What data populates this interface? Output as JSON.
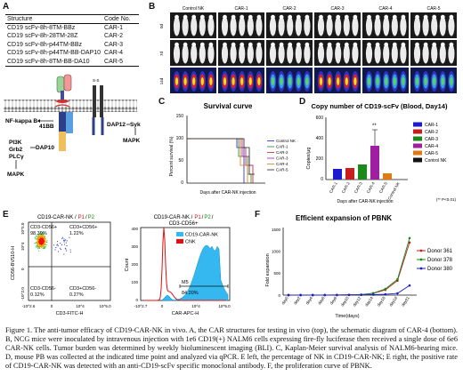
{
  "panels": {
    "a": "A",
    "b": "B",
    "c": "C",
    "d": "D",
    "e": "E",
    "f": "F"
  },
  "table": {
    "headers": [
      "Structure",
      "Code No."
    ],
    "rows": [
      [
        "CD19 scFv-8h-8TM-BBz",
        "CAR-1"
      ],
      [
        "CD19 scFv-8h-28TM-28Z",
        "CAR-2"
      ],
      [
        "CD19 scFv-8h-p44TM-BBz",
        "CAR-3"
      ],
      [
        "CD19 scFv-8h-p44TM-BB-DAP10",
        "CAR-4"
      ],
      [
        "CD19 scFv-8h-8TM-BB-DA10",
        "CAR-5"
      ]
    ]
  },
  "schematic": {
    "nfkb": "NF-kappa B",
    "bb": "41BB",
    "dap10": "DAP10",
    "dap12": "DAP12",
    "syk": "Syk",
    "pi3k": "PI3K",
    "grb2": "Grb2",
    "plcy": "PLCγ",
    "mapk_left": "MAPK",
    "mapk_right": "MAPK",
    "ss": "S-S"
  },
  "imaging": {
    "columns": [
      "Control NK",
      "CAR-1",
      "CAR-2",
      "CAR-3",
      "CAR-4",
      "CAR-5"
    ],
    "row_labels": [
      "0d",
      "7d",
      "14d"
    ]
  },
  "survival": {
    "title": "Survival curve",
    "ylabel": "Percent survival (%)",
    "xlabel": "Days after CAR-NK injection",
    "legend": [
      "Control NK",
      "CAR-1",
      "CAR-2",
      "CAR-3",
      "CAR-4",
      "CAR-5"
    ],
    "colors": [
      "#1b1bd0",
      "#1a8a1a",
      "#c81e1e",
      "#a01ea0",
      "#e07a10",
      "#222222"
    ],
    "yticks": [
      "0",
      "50",
      "100",
      "150"
    ]
  },
  "copy": {
    "title": "Copy number of CD19-scFv (Blood, Day14)",
    "ylabel": "Copies/μg",
    "xlabel": "Days after CAR-NK injection",
    "yticks": [
      "0",
      "200",
      "400",
      "600"
    ],
    "legend": [
      "CAR-1",
      "CAR-2",
      "CAR-3",
      "CAR-4",
      "CAR-5",
      "Control NK"
    ],
    "significance": "**",
    "note": "(** P<0.01)"
  },
  "flow": {
    "title": "CD19-CAR-NK / P1 / P2",
    "title_parts": {
      "main": "CD19-CAR-NK /",
      "p1": "P1",
      "sep": "/",
      "p2": "P2"
    },
    "q1_label": "CD3-CD56+",
    "q1_value": "98.39%",
    "q2_label": "CD3+CD56+",
    "q2_value": "1.22%",
    "q3_label": "CD3-CD56-",
    "q3_value": "0.12%",
    "q4_label": "CD3+CD56-",
    "q4_value": "0.27%",
    "xlabel": "CD3-FITC-H",
    "ylabel": "CD56-BV510-H",
    "x_ticks": [
      "-10^2.6",
      "0",
      "10^4",
      "10^5.0"
    ],
    "y_ticks": [
      "-10^2.0",
      "0",
      "10^4",
      "10^5.0"
    ]
  },
  "histogram": {
    "title_line1": "CD19-CAR-NK / P1 / P2 /",
    "title_parts": {
      "main": "CD19-CAR-NK /",
      "p1": "P1",
      "sep": "/",
      "p2": "P2",
      "tail": "/"
    },
    "title_line2": "CD3-CD56+",
    "legend": [
      "CD19-CAR-NK",
      "CNK"
    ],
    "gate": "M5",
    "gate_value": "84.20%",
    "xlabel": "CAR-APC-H",
    "ylabel": "Count",
    "x_ticks": [
      "-10^2.7",
      "0",
      "10^4",
      "10^5.0"
    ],
    "y_ticks": [
      "0",
      "100",
      "200",
      "300",
      "400"
    ]
  },
  "chart_data": {
    "type": "line",
    "title": "Efficient expansion of PBNK",
    "xlabel": "Time(days)",
    "ylabel": "Fold expansion",
    "categories": [
      "day0",
      "day2",
      "day4",
      "day6",
      "day8",
      "day10",
      "day12",
      "day14",
      "day16",
      "day18",
      "day21"
    ],
    "series": [
      {
        "name": "Donor 361",
        "color": "#c81e1e",
        "values": [
          1,
          1,
          1,
          2,
          3,
          5,
          10,
          40,
          120,
          330,
          1200
        ]
      },
      {
        "name": "Donor 378",
        "color": "#1a8a1a",
        "values": [
          1,
          1,
          1,
          2,
          3,
          5,
          12,
          45,
          140,
          360,
          1300
        ]
      },
      {
        "name": "Donor 380",
        "color": "#1b1bd0",
        "values": [
          1,
          1,
          1,
          1,
          2,
          3,
          5,
          10,
          20,
          40,
          220
        ]
      }
    ],
    "ylim": [
      0,
      1500
    ]
  },
  "caption": {
    "text": "Figure 1. The anti-tumor efficacy of CD19-CAR-NK in vivo. A, the CAR structures for testing in vivo (top), the schematic diagram of CAR-4 (bottom). B, NCG mice were inoculated by intravenous injection with 1e6 CD19(+) NALM6 cells expressing fire-fly luciferase then received a single dose of 6e6 CAR-NK cells. Tumor burden was determined by weekly bioluminescent imaging (BLI). C, Kaplan-Meier survival analysis of NALM6-bearing mice. D, mouse PB was collected at the indicated time point and analyzed via qPCR. E left, the percentage of NK in CD19-CAR-NK; E right, the positive rate of CD19-CAR-NK was detected with an anti-CD19-scFv specific monoclonal antibody. F, the proliferation curve of PBNK."
  }
}
